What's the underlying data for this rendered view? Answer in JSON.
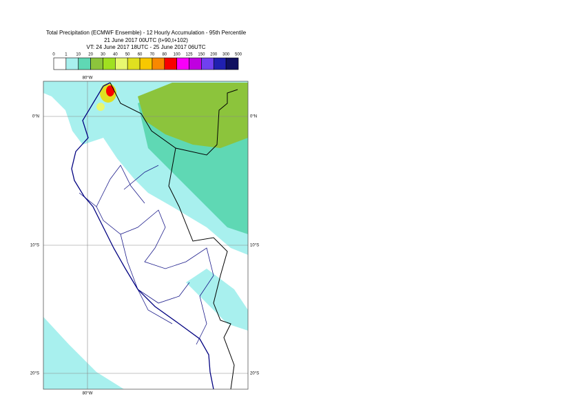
{
  "header": {
    "lines": [
      "Total Precipitation (ECMWF Ensemble) - 12 Hourly Accumulation - 95th Percentile",
      "21 June 2017 00UTC (t+90,t+102)",
      "VT: 24 June 2017 18UTC - 25 June 2017 06UTC"
    ]
  },
  "legend": {
    "thresholds": [
      0,
      1,
      10,
      20,
      30,
      40,
      50,
      60,
      70,
      80,
      100,
      125,
      150,
      200,
      300,
      500
    ],
    "colors": [
      "#ffffff",
      "#a8f0ee",
      "#5fd8b4",
      "#8cc43c",
      "#a0e020",
      "#e8f870",
      "#e0e020",
      "#f8c800",
      "#f88800",
      "#f80000",
      "#f800f8",
      "#c000e0",
      "#7040f0",
      "#2020b0",
      "#101060"
    ]
  },
  "map": {
    "lon_label": "80°W",
    "lat_labels": [
      "0°N",
      "10°S",
      "20°S"
    ]
  }
}
